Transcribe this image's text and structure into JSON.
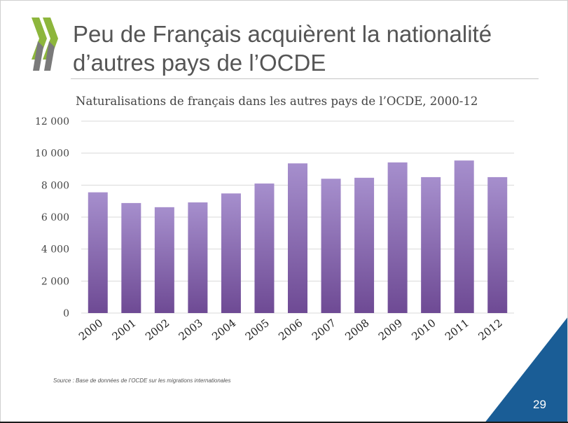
{
  "slide": {
    "title_line1": "Peu de Français acquièrent la nationalité",
    "title_line2": "d’autres pays de l’OCDE",
    "source": "Source : Base de données de l’OCDE sur les migrations internationales",
    "page_number": "29",
    "colors": {
      "brand_green": "#8db63c",
      "brand_gray": "#7a7a7a",
      "corner_blue": "#1a5d96"
    }
  },
  "chart_data": {
    "type": "bar",
    "title": "Naturalisations de français dans les autres pays de l’OCDE, 2000-12",
    "xlabel": "",
    "ylabel": "",
    "categories": [
      "2000",
      "2001",
      "2002",
      "2003",
      "2004",
      "2005",
      "2006",
      "2007",
      "2008",
      "2009",
      "2010",
      "2011",
      "2012"
    ],
    "values": [
      7550,
      6880,
      6620,
      6920,
      7480,
      8100,
      9360,
      8400,
      8460,
      9420,
      8500,
      9540,
      8500
    ],
    "ylim": [
      0,
      12000
    ],
    "yticks": [
      0,
      2000,
      4000,
      6000,
      8000,
      10000,
      12000
    ],
    "ytick_labels": [
      "0",
      "2 000",
      "4 000",
      "6 000",
      "8 000",
      "10 000",
      "12 000"
    ],
    "grid": true,
    "legend": "none",
    "bar_color_top": "#a68fcd",
    "bar_color_bottom": "#6e4a94"
  }
}
